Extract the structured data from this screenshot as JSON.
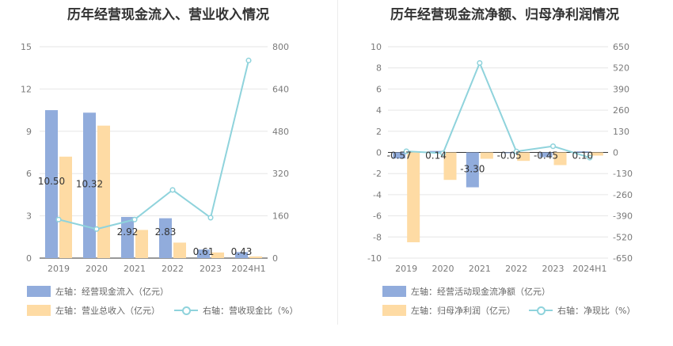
{
  "titles": {
    "left": "历年经营现金流入、营业收入情况",
    "right": "历年经营现金流净额、归母净利润情况"
  },
  "colors": {
    "bar_blue": "#91acdc",
    "bar_orange": "#fedba4",
    "line_teal": "#8fd3dc",
    "grid": "#e6e6e6",
    "axis_text": "#7a7a7a"
  },
  "legend": {
    "left": [
      "左轴：经营现金流入（亿元）",
      "左轴：营业总收入（亿元）",
      "右轴：营收现金比（%）"
    ],
    "right": [
      "左轴：经营活动现金流净额（亿元）",
      "左轴：归母净利润（亿元）",
      "右轴：净现比（%）"
    ]
  },
  "chart_data": [
    {
      "type": "bar",
      "title": "历年经营现金流入、营业收入情况",
      "categories": [
        "2019",
        "2020",
        "2021",
        "2022",
        "2023",
        "2024H1"
      ],
      "left_ticks": [
        "0",
        "3",
        "6",
        "9",
        "12",
        "15"
      ],
      "right_ticks": [
        "0",
        "160",
        "320",
        "480",
        "640",
        "800"
      ],
      "ylim_left": [
        0,
        15
      ],
      "ylim_right": [
        0,
        800
      ],
      "series": [
        {
          "name": "左轴：经营现金流入（亿元）",
          "axis": "left",
          "kind": "bar",
          "values": [
            10.5,
            10.32,
            2.92,
            2.83,
            0.61,
            0.43
          ],
          "labels": [
            "10.50",
            "10.32",
            "2.92",
            "2.83",
            "0.61",
            "0.43"
          ]
        },
        {
          "name": "左轴：营业总收入（亿元）",
          "axis": "left",
          "kind": "bar",
          "values": [
            7.2,
            9.4,
            2.0,
            1.1,
            0.4,
            0.12
          ]
        },
        {
          "name": "右轴：营收现金比（%）",
          "axis": "right",
          "kind": "line",
          "values": [
            146,
            110,
            146,
            258,
            153,
            748
          ]
        }
      ]
    },
    {
      "type": "bar",
      "title": "历年经营现金流净额、归母净利润情况",
      "categories": [
        "2019",
        "2020",
        "2021",
        "2022",
        "2023",
        "2024H1"
      ],
      "left_ticks": [
        "-10",
        "-8",
        "-6",
        "-4",
        "-2",
        "0",
        "2",
        "4",
        "6",
        "8",
        "10"
      ],
      "right_ticks": [
        "-650",
        "-520",
        "-390",
        "-260",
        "-130",
        "0",
        "130",
        "260",
        "390",
        "520",
        "650"
      ],
      "ylim_left": [
        -10,
        10
      ],
      "ylim_right": [
        -650,
        650
      ],
      "series": [
        {
          "name": "左轴：经营活动现金流净额（亿元）",
          "axis": "left",
          "kind": "bar",
          "values": [
            -0.57,
            0.14,
            -3.3,
            -0.05,
            -0.45,
            0.1
          ],
          "labels": [
            "-0.57",
            "0.14",
            "-3.30",
            "-0.05",
            "-0.45",
            "0.10"
          ]
        },
        {
          "name": "左轴：归母净利润（亿元）",
          "axis": "left",
          "kind": "bar",
          "values": [
            -8.5,
            -2.6,
            -0.6,
            -0.8,
            -1.2,
            -0.3
          ]
        },
        {
          "name": "右轴：净现比（%）",
          "axis": "right",
          "kind": "line",
          "values": [
            7,
            -5,
            550,
            6,
            38,
            -32
          ]
        }
      ]
    }
  ]
}
